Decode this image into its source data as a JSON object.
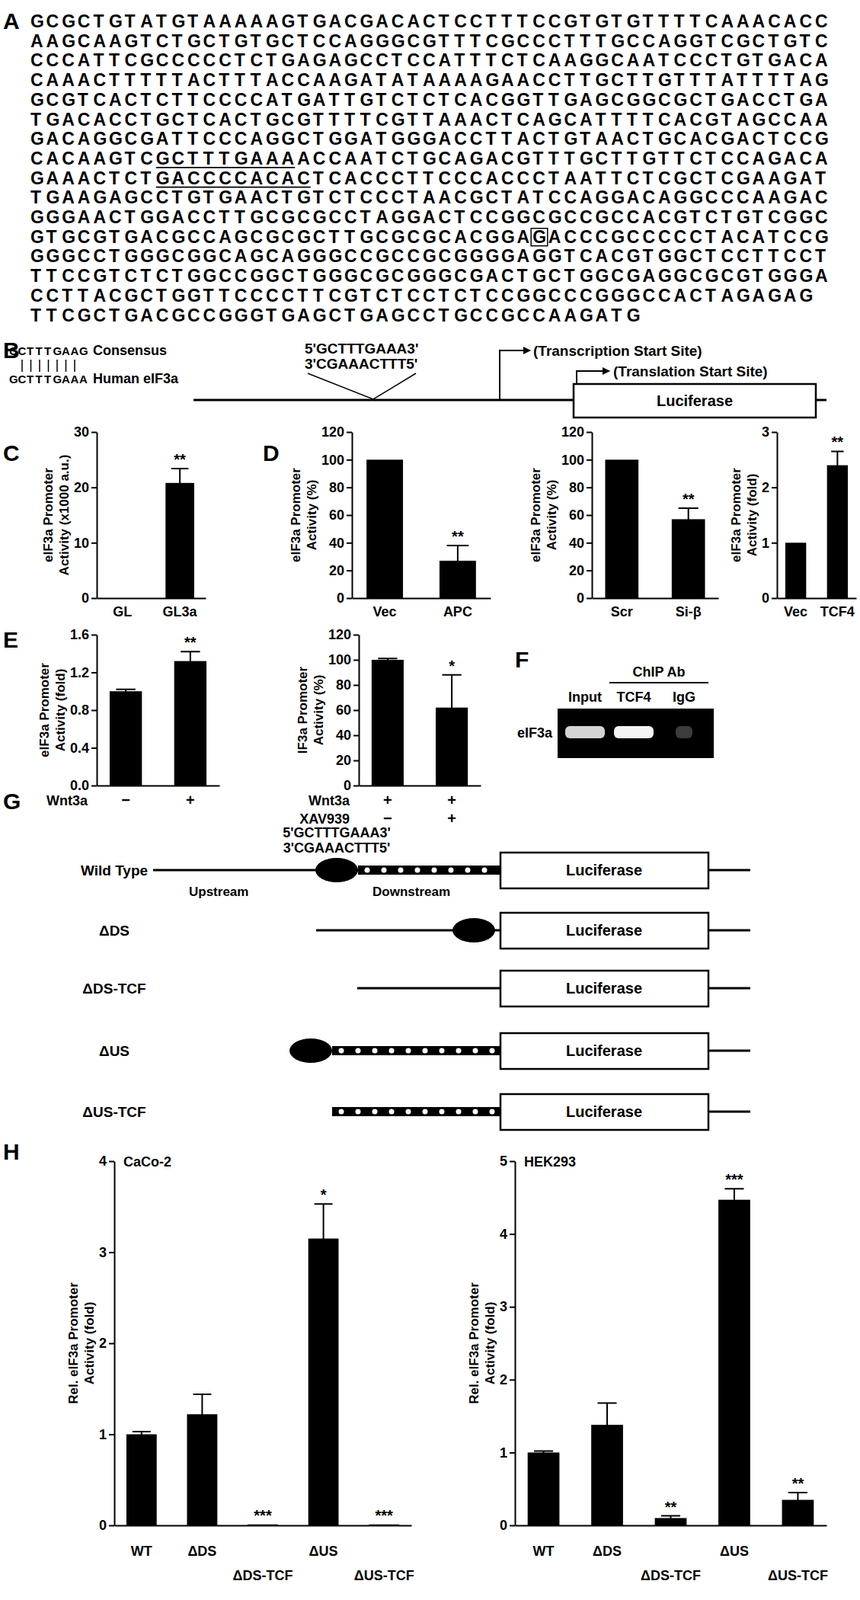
{
  "panel_labels": [
    "A",
    "B",
    "C",
    "D",
    "E",
    "F",
    "G",
    "H"
  ],
  "sequence": {
    "lines": [
      [
        "GCGCTGTATGTAAAAAGTGACGACACTCCTTTCCGTGTGTTTTCAAACACC"
      ],
      [
        "AAGCAAGTCTGCTGTGCTCCAGGGCGTTTCGCCCTTTGCCAGGTCGCTGTC"
      ],
      [
        "CCCATTCGCCCCCTCTGAGAGCCTCCATTTCTCAAGGCAATCCCTGTGACA"
      ],
      [
        "CAAACTTTTTACTTTACCAAGATATAAAAGAACCTTGCTTGTTTATTTTAG"
      ],
      [
        "GCGTCACTCTTCCCCATGATTGTCTCTCACGGTTGAGCGGCGCTGACCTGA"
      ],
      [
        "TGACACCTGCTCACTGCGTTTTCGTTAAACTCAGCATTTTCACGTAGCCAA"
      ],
      [
        "GACAGGCGATTCCCAGGCTGGATGGGACCTTACTGTAACTGCACGACTCCG"
      ],
      [
        "CACAAGTC",
        {
          "text": "GCTTTGAAA",
          "underlined": true
        },
        "ACCAATCTGCAGACGTTTGCTTGTTCTCCAGACA"
      ],
      [
        "GAAACTCT",
        {
          "text": "GACCCCACAC",
          "underlined": true
        },
        "TCACCCTTCCCACCCTAATTCTCGCTCGAAGAT"
      ],
      [
        "TGAAGAGCCTGTGAACTGTCTCCCTAACGCTATCCAGGACAGGCCCAAGAC"
      ],
      [
        "GGGAACTGGACCTTGCGCGCCTAGGACTCCGGCGCCGCCACGTCTGTCGGC"
      ],
      [
        "GTGCGTGACGCCAGCGCGCTTGCGCGCACGGA",
        {
          "text": "G",
          "boxed": true
        },
        "ACCCGCCCCCTACATCCG"
      ],
      [
        "GGGCCTGGGCGGCAGCAGGGCCGCCGCGGGGAGGTCACGTGGCTCCTTCCT"
      ],
      [
        "TTCCGTCTCTGGCCGGCTGGGCGCGGGCGACTGCTGGCGAGGCGCGTGGGA"
      ],
      [
        "CCTTACGCTGGTTCCCCTTCGTCTCCTCTCCGGCCCGGGCCACTAGAGAG"
      ],
      [
        "TTCGCTGACGCCGGGTGAGCTGAGCCTGCCGCCAAGATG"
      ]
    ]
  },
  "alignment": {
    "rows": [
      {
        "sequence": "CCTTTGAAG",
        "label": "Consensus"
      },
      {
        "sequence": "GCTTTGAAA",
        "label": "Human eIF3a"
      }
    ]
  },
  "promoter_construct": {
    "strand_top": "5'GCTTTGAAA3'",
    "strand_bottom": "3'CGAAACTTT5'",
    "transcription_start": "(Transcription Start Site)",
    "translation_start": "(Translation Start Site)",
    "reporter": "Luciferase"
  },
  "chip": {
    "antibody_header": "ChIP Ab",
    "lanes": [
      "Input",
      "TCF4",
      "IgG"
    ],
    "row_label": "eIF3a"
  },
  "deletion_constructs": {
    "strand_top": "5'GCTTTGAAA3'",
    "strand_bottom": "3'CGAAACTTT5'",
    "upstream": "Upstream",
    "downstream": "Downstream",
    "reporter": "Luciferase",
    "rows": [
      "Wild Type",
      "ΔDS",
      "ΔDS-TCF",
      "ΔUS",
      "ΔUS-TCF"
    ]
  },
  "chart_data": [
    {
      "type": "bar",
      "categories": [
        "GL",
        "GL3a"
      ],
      "values": [
        0,
        20.8
      ],
      "errors": [
        null,
        2.6
      ],
      "significance": [
        null,
        "**"
      ],
      "ylabel": [
        "eIF3a Promoter",
        "Activity (x1000 a.u.)"
      ],
      "ylim": [
        0,
        30
      ],
      "yticks": [
        0,
        10,
        20,
        30
      ],
      "color": "#000000"
    },
    {
      "type": "bar",
      "categories": [
        "Vec",
        "APC"
      ],
      "values": [
        100,
        27
      ],
      "errors": [
        null,
        11
      ],
      "significance": [
        null,
        "**"
      ],
      "ylabel": [
        "eIF3a Promoter",
        "Activity (%)"
      ],
      "ylim": [
        0,
        120
      ],
      "yticks": [
        0,
        20,
        40,
        60,
        80,
        100,
        120
      ],
      "color": "#000000"
    },
    {
      "type": "bar",
      "categories": [
        "Scr",
        "Si-β"
      ],
      "values": [
        100,
        57
      ],
      "errors": [
        null,
        8
      ],
      "significance": [
        null,
        "**"
      ],
      "ylabel": [
        "eIF3a Promoter",
        "Activity (%)"
      ],
      "ylim": [
        0,
        120
      ],
      "yticks": [
        0,
        20,
        40,
        60,
        80,
        100,
        120
      ],
      "color": "#000000"
    },
    {
      "type": "bar",
      "categories": [
        "Vec",
        "TCF4"
      ],
      "values": [
        1,
        2.4
      ],
      "errors": [
        null,
        0.25
      ],
      "significance": [
        null,
        "**"
      ],
      "ylabel": [
        "eIF3a Promoter",
        "Activity (fold)"
      ],
      "ylim": [
        0,
        3
      ],
      "yticks": [
        0,
        1,
        2,
        3
      ],
      "color": "#000000"
    },
    {
      "type": "bar",
      "x_rows": [
        {
          "label": "Wnt3a",
          "values": [
            "−",
            "+"
          ]
        }
      ],
      "values": [
        1,
        1.32
      ],
      "errors": [
        0.02,
        0.1
      ],
      "significance": [
        null,
        "**"
      ],
      "ylabel": [
        "eIF3a Promoter",
        "Activity (fold)"
      ],
      "ylim": [
        0,
        1.6
      ],
      "yticks": [
        {
          "value": 0,
          "label": "0.0"
        },
        0.4,
        0.8,
        1.2,
        1.6
      ],
      "color": "#000000"
    },
    {
      "type": "bar",
      "x_rows": [
        {
          "label": "Wnt3a",
          "values": [
            "+",
            "+"
          ]
        },
        {
          "label": "XAV939",
          "values": [
            "−",
            "+"
          ]
        }
      ],
      "values": [
        100,
        62
      ],
      "errors": [
        1,
        26
      ],
      "significance": [
        null,
        "*"
      ],
      "ylabel": [
        "IF3a Promoter",
        "Activity (%)"
      ],
      "ylim": [
        0,
        120
      ],
      "yticks": [
        0,
        20,
        40,
        60,
        80,
        100,
        120
      ],
      "color": "#000000"
    },
    {
      "type": "bar",
      "title": "CaCo-2",
      "categories": [
        "WT",
        "ΔDS",
        "ΔDS-TCF",
        "ΔUS",
        "ΔUS-TCF"
      ],
      "values": [
        1,
        1.22,
        0.01,
        3.15,
        0.01
      ],
      "errors": [
        0.03,
        0.22,
        null,
        0.38,
        null
      ],
      "significance": [
        null,
        null,
        "***",
        "*",
        "***"
      ],
      "ylabel": [
        "Rel. eIF3a Promoter",
        "Activity (fold)"
      ],
      "ylim": [
        0,
        4
      ],
      "yticks": [
        0,
        1,
        2,
        3,
        4
      ],
      "color": "#000000"
    },
    {
      "type": "bar",
      "title": "HEK293",
      "categories": [
        "WT",
        "ΔDS",
        "ΔDS-TCF",
        "ΔUS",
        "ΔUS-TCF"
      ],
      "values": [
        1,
        1.38,
        0.1,
        4.47,
        0.35
      ],
      "errors": [
        0.02,
        0.3,
        0.03,
        0.15,
        0.1
      ],
      "significance": [
        null,
        null,
        "**",
        "***",
        "**"
      ],
      "ylabel": [
        "Rel. eIF3a Promoter",
        "Activity (fold)"
      ],
      "ylim": [
        0,
        5
      ],
      "yticks": [
        0,
        1,
        2,
        3,
        4,
        5
      ],
      "color": "#000000"
    }
  ]
}
